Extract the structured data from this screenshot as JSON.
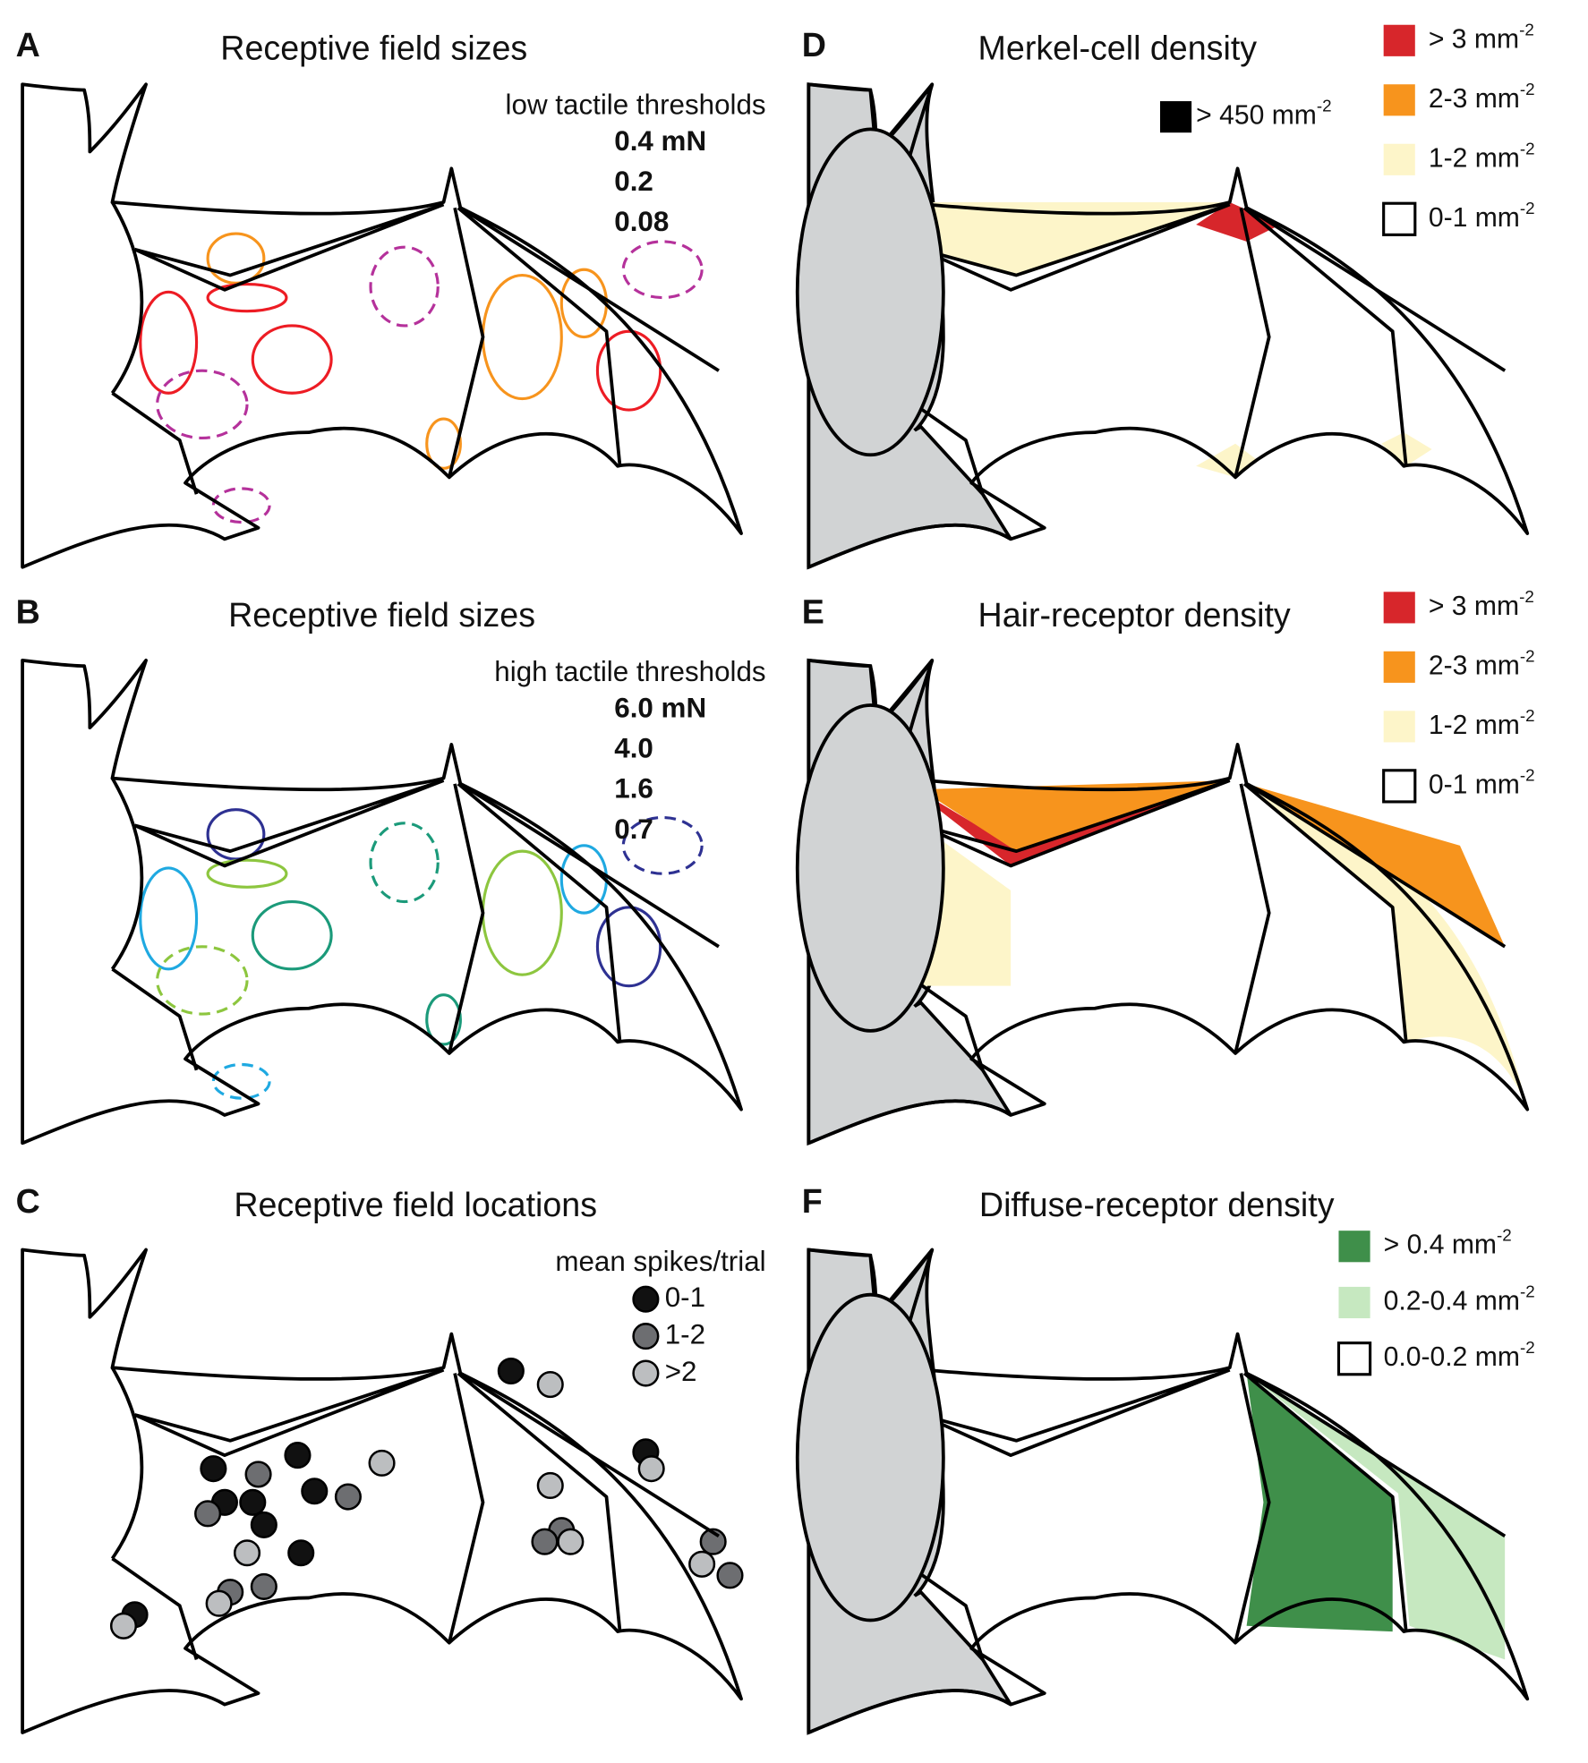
{
  "panels": [
    {
      "letter": "A",
      "title": "Receptive field sizes",
      "legend_title": "low tactile thresholds",
      "legend": [
        {
          "label": "0.4 mN",
          "color": "#f7941d"
        },
        {
          "label": "0.2",
          "color": "#ed1c24"
        },
        {
          "label": "0.08",
          "color": "#b5319b"
        }
      ]
    },
    {
      "letter": "B",
      "title": "Receptive field sizes",
      "legend_title": "high tactile thresholds",
      "legend": [
        {
          "label": "6.0 mN",
          "color": "#2e3192"
        },
        {
          "label": "4.0",
          "color": "#1fa9e1"
        },
        {
          "label": "1.6",
          "color": "#1b9a7a"
        },
        {
          "label": "0.7",
          "color": "#8dc63f"
        }
      ]
    },
    {
      "letter": "C",
      "title": "Receptive field locations",
      "legend_title": "mean spikes/trial",
      "legend": [
        {
          "label": "0-1",
          "color": "#111111"
        },
        {
          "label": "1-2",
          "color": "#6d6e71"
        },
        {
          "label": ">2",
          "color": "#bcbec0"
        }
      ]
    },
    {
      "letter": "D",
      "title": "Merkel-cell density",
      "legend": [
        {
          "label": "> 3 mm",
          "exponent": "-2",
          "color": "#d7262b"
        },
        {
          "label": "2-3 mm",
          "exponent": "-2",
          "color": "#f7941d"
        },
        {
          "label": "1-2 mm",
          "exponent": "-2",
          "color": "#fdf5c9"
        },
        {
          "label": "0-1 mm",
          "exponent": "-2",
          "color": "#ffffff"
        }
      ],
      "inset_legend": {
        "label": "> 450 mm",
        "exponent": "-2",
        "color": "#000000"
      }
    },
    {
      "letter": "E",
      "title": "Hair-receptor density",
      "legend": [
        {
          "label": "> 3 mm",
          "exponent": "-2",
          "color": "#d7262b"
        },
        {
          "label": "2-3 mm",
          "exponent": "-2",
          "color": "#f7941d"
        },
        {
          "label": "1-2 mm",
          "exponent": "-2",
          "color": "#fdf5c9"
        },
        {
          "label": "0-1 mm",
          "exponent": "-2",
          "color": "#ffffff"
        }
      ]
    },
    {
      "letter": "F",
      "title": "Diffuse-receptor density",
      "legend": [
        {
          "label": "> 0.4 mm",
          "exponent": "-2",
          "color": "#3f8f4a"
        },
        {
          "label": "0.2-0.4 mm",
          "exponent": "-2",
          "color": "#c6e8c0"
        },
        {
          "label": "0.0-0.2 mm",
          "exponent": "-2",
          "color": "#ffffff"
        }
      ]
    }
  ]
}
